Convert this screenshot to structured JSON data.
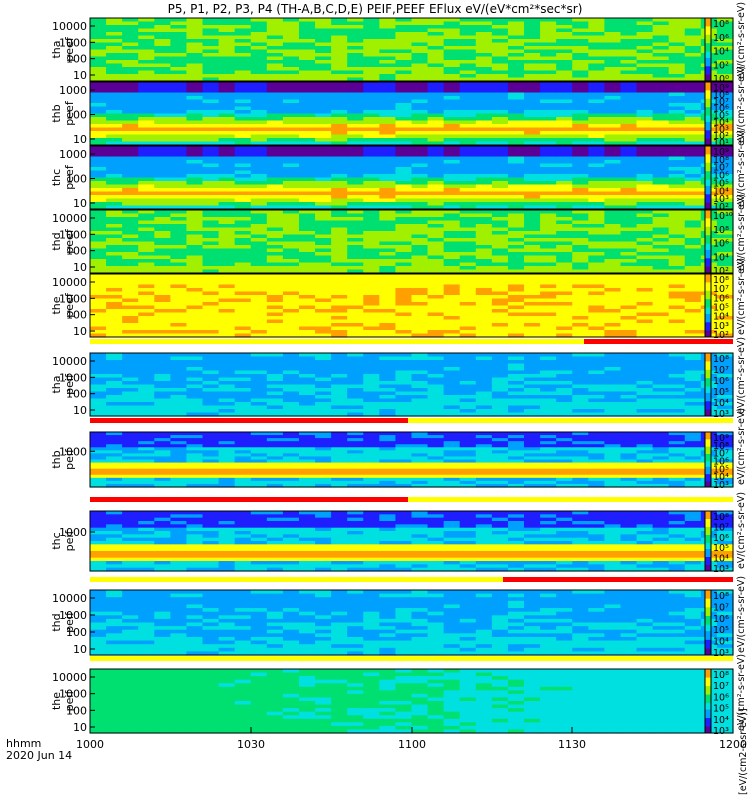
{
  "title": "P5, P1, P2, P3, P4 (TH-A,B,C,D,E) PEIF,PEEF EFlux eV/(eV*cm²*sec*sr)",
  "x_axis": {
    "ticks": [
      "1000",
      "1030",
      "1100",
      "1130",
      "1200"
    ],
    "label_line1": "hhmm",
    "label_line2": "2020 Jun 14"
  },
  "colorbar_label_bottom": "[eV/(cm2-s-sr-eV)]",
  "colors": {
    "ramp": [
      "#5a0096",
      "#1e1eff",
      "#00a0ff",
      "#00e0e0",
      "#00e070",
      "#a0f000",
      "#ffff00",
      "#ffa000",
      "#ff2000"
    ],
    "separator_red": "#ff0000",
    "separator_yellow": "#ffff00"
  },
  "chart_data": [
    {
      "type": "heatmap",
      "name": "tha peef",
      "ylabel_line1": "tha",
      "ylabel_line2": "peef",
      "y_ticks": [
        "10000",
        "1000",
        "100",
        "10"
      ],
      "cbar_ticks": [
        "10⁸",
        "10⁶",
        "10⁴",
        "10²",
        "10⁰"
      ],
      "pattern": "uniform-green",
      "base_level": 4.5
    },
    {
      "type": "heatmap",
      "name": "thb peef",
      "ylabel_line1": "thb",
      "ylabel_line2": "peef",
      "y_ticks": [
        "1000",
        "100",
        "10"
      ],
      "cbar_ticks": [
        "10⁹",
        "10⁸",
        "10⁷",
        "10⁶",
        "10⁵",
        "10⁴",
        "10³",
        "10²",
        "10¹"
      ],
      "pattern": "red-band-low",
      "base_level": 5
    },
    {
      "type": "heatmap",
      "name": "thc peef",
      "ylabel_line1": "thc",
      "ylabel_line2": "peef",
      "y_ticks": [
        "1000",
        "100",
        "10"
      ],
      "cbar_ticks": [
        "10⁹",
        "10⁸",
        "10⁷",
        "10⁶",
        "10⁵",
        "10⁴",
        "10³",
        "10²"
      ],
      "pattern": "red-band-low",
      "base_level": 5
    },
    {
      "type": "heatmap",
      "name": "thd peef",
      "ylabel_line1": "thd",
      "ylabel_line2": "peef",
      "y_ticks": [
        "10000",
        "1000",
        "100",
        "10"
      ],
      "cbar_ticks": [
        "10¹⁰",
        "10⁸",
        "10⁶",
        "10⁴",
        "10²"
      ],
      "pattern": "uniform-green",
      "base_level": 4.6
    },
    {
      "type": "heatmap",
      "name": "the peef",
      "ylabel_line1": "the",
      "ylabel_line2": "peef",
      "y_ticks": [
        "10000",
        "1000",
        "100",
        "10"
      ],
      "cbar_ticks": [
        "10⁸",
        "10⁷",
        "10⁶",
        "10⁵",
        "10⁴",
        "10³",
        "10²"
      ],
      "pattern": "orange-wide",
      "base_level": 6.8
    },
    {
      "type": "heatmap",
      "name": "tha peif",
      "ylabel_line1": "tha",
      "ylabel_line2": "peif",
      "y_ticks": [
        "10000",
        "1000",
        "100",
        "10"
      ],
      "cbar_ticks": [
        "10⁸",
        "10⁷",
        "10⁶",
        "10⁵",
        "10⁴",
        "10³"
      ],
      "pattern": "blue-mid",
      "base_level": 3.2
    },
    {
      "type": "heatmap",
      "name": "thb peif",
      "ylabel_line1": "thb",
      "ylabel_line2": "peif",
      "y_ticks": [
        "1000"
      ],
      "cbar_ticks": [
        "10⁹",
        "10⁸",
        "10⁷",
        "10⁶",
        "10⁵",
        "10⁴",
        "10³"
      ],
      "pattern": "red-band-mid",
      "base_level": 3
    },
    {
      "type": "heatmap",
      "name": "thc peif",
      "ylabel_line1": "thc",
      "ylabel_line2": "peif",
      "y_ticks": [
        "1000"
      ],
      "cbar_ticks": [
        "10⁸",
        "10⁷",
        "10⁶",
        "10⁵",
        "10⁴",
        "10³"
      ],
      "pattern": "red-band-mid",
      "base_level": 3
    },
    {
      "type": "heatmap",
      "name": "thd peif",
      "ylabel_line1": "thd",
      "ylabel_line2": "peif",
      "y_ticks": [
        "10000",
        "1000",
        "100",
        "10"
      ],
      "cbar_ticks": [
        "10⁸",
        "10⁷",
        "10⁶",
        "10⁵",
        "10⁴",
        "10³"
      ],
      "pattern": "blue-mid",
      "base_level": 3.6
    },
    {
      "type": "heatmap",
      "name": "the peif",
      "ylabel_line1": "the",
      "ylabel_line2": "peif",
      "y_ticks": [
        "10000",
        "1000",
        "100",
        "10"
      ],
      "cbar_ticks": [
        "10⁸",
        "10⁷",
        "10⁶",
        "10⁵",
        "10⁴",
        "10³"
      ],
      "pattern": "cyan-soft",
      "base_level": 4.2
    }
  ]
}
